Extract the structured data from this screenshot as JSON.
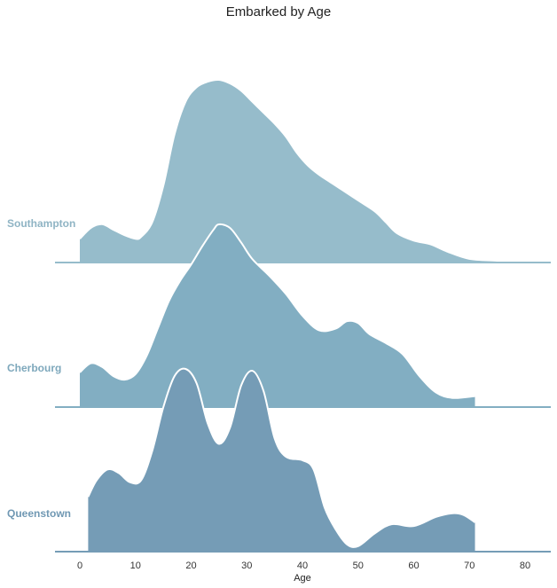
{
  "chart_data": {
    "type": "area",
    "title": "Embarked by Age",
    "xlabel": "Age",
    "ylabel": "",
    "xlim": [
      -4.5,
      85
    ],
    "xticks": [
      0,
      10,
      20,
      30,
      40,
      50,
      60,
      70,
      80
    ],
    "grid": false,
    "legend": "none",
    "series": [
      {
        "name": "Southampton",
        "color": "#96bccb",
        "label_color": "#8fb4c4",
        "x": [
          0,
          2,
          4,
          6,
          8,
          10,
          11,
          13,
          15,
          17,
          19,
          21,
          23,
          25,
          27,
          29,
          31,
          33,
          35,
          37,
          39,
          41,
          43,
          45,
          47,
          50,
          53,
          55,
          57,
          60,
          63,
          66,
          70,
          75,
          80,
          85
        ],
        "density": [
          0.13,
          0.19,
          0.21,
          0.18,
          0.15,
          0.13,
          0.14,
          0.22,
          0.42,
          0.7,
          0.88,
          0.96,
          0.99,
          1.0,
          0.98,
          0.94,
          0.88,
          0.82,
          0.76,
          0.69,
          0.6,
          0.53,
          0.48,
          0.44,
          0.4,
          0.34,
          0.28,
          0.22,
          0.16,
          0.12,
          0.1,
          0.06,
          0.02,
          0.01,
          0.0,
          0.0
        ]
      },
      {
        "name": "Cherbourg",
        "color": "#82aec2",
        "label_color": "#7ea8bc",
        "x": [
          0,
          2,
          4,
          6,
          8,
          10,
          12,
          14,
          16,
          18,
          20,
          22,
          24,
          25,
          27,
          29,
          31,
          34,
          37,
          40,
          43,
          46,
          48,
          50,
          52,
          55,
          58,
          61,
          64,
          67,
          71
        ],
        "density": [
          0.19,
          0.24,
          0.22,
          0.17,
          0.15,
          0.18,
          0.28,
          0.43,
          0.58,
          0.69,
          0.78,
          0.88,
          0.97,
          1.0,
          0.98,
          0.9,
          0.81,
          0.72,
          0.62,
          0.5,
          0.42,
          0.43,
          0.47,
          0.46,
          0.4,
          0.35,
          0.29,
          0.17,
          0.08,
          0.05,
          0.06
        ]
      },
      {
        "name": "Queenstown",
        "color": "#759cb6",
        "label_color": "#7098b3",
        "x": [
          1.5,
          3,
          5,
          7,
          9,
          11,
          13,
          15,
          17,
          19,
          21,
          23,
          25,
          27,
          29,
          31,
          33,
          35,
          37,
          40,
          42,
          44,
          46,
          48,
          50,
          53,
          56,
          60,
          64,
          67,
          69,
          71
        ],
        "density": [
          0.3,
          0.39,
          0.45,
          0.43,
          0.38,
          0.39,
          0.55,
          0.79,
          0.96,
          1.0,
          0.92,
          0.7,
          0.59,
          0.68,
          0.91,
          0.99,
          0.88,
          0.62,
          0.52,
          0.5,
          0.45,
          0.24,
          0.12,
          0.04,
          0.03,
          0.1,
          0.15,
          0.14,
          0.19,
          0.21,
          0.2,
          0.16
        ]
      }
    ]
  }
}
